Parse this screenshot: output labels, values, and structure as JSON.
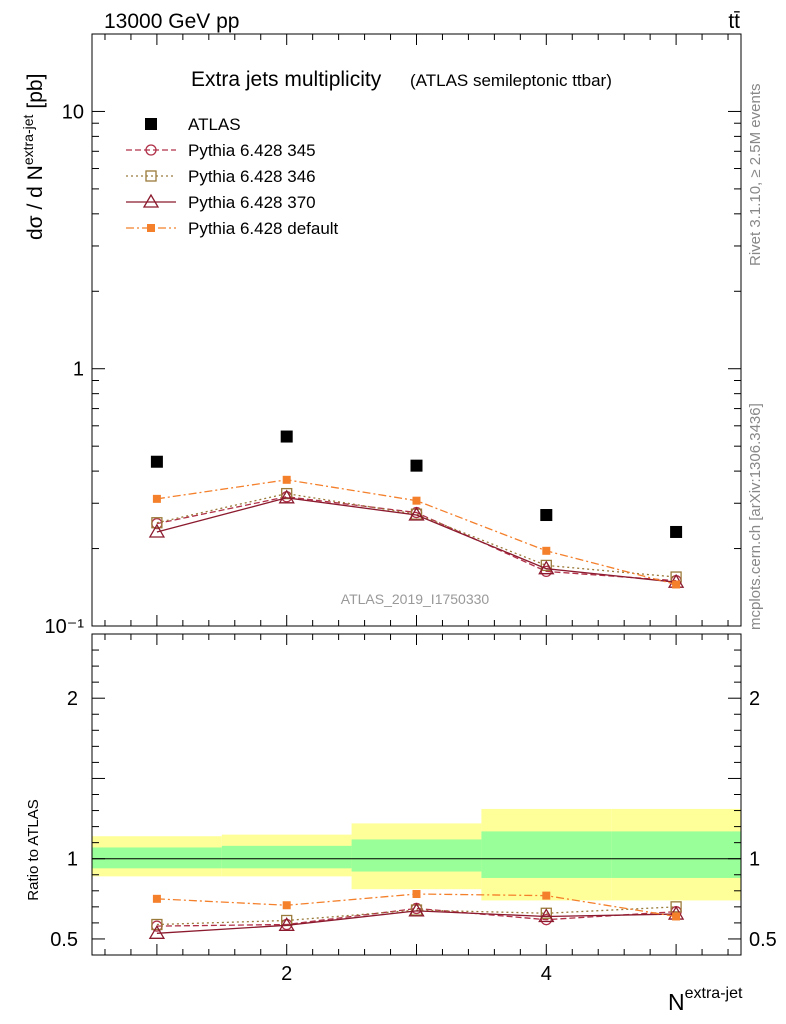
{
  "header": {
    "energy_label": "13000 GeV pp",
    "process_label": "tt̄"
  },
  "side_labels": {
    "rivet": "Rivet 3.1.10, ≥ 2.5M events",
    "mcplots": "mcplots.cern.ch [arXiv:1306.3436]"
  },
  "chart_data": {
    "type": "scatter",
    "title": "Extra jets multiplicity",
    "subtitle": "(ATLAS semileptonic ttbar)",
    "analysis_id": "ATLAS_2019_I1750330",
    "xlabel": "N",
    "xlabel_sup": "extra-jet",
    "ylabel": "dσ / d N",
    "ylabel_sup": "extra-jet",
    "ylabel_unit": "[pb]",
    "xlim": [
      0.5,
      5.5
    ],
    "ylim": [
      0.1,
      20
    ],
    "yscale": "log",
    "x": [
      1,
      2,
      3,
      4,
      5
    ],
    "x_ticks": [
      "2",
      "4"
    ],
    "y_tick_labels": {
      "0.1": "10⁻¹",
      "1": "1",
      "10": "10"
    },
    "legend_position": "top-left",
    "series": [
      {
        "name": "ATLAS",
        "color": "#000000",
        "marker": "filled-square",
        "line": "none",
        "values": [
          0.435,
          0.545,
          0.42,
          0.27,
          0.232
        ]
      },
      {
        "name": "Pythia 6.428 345",
        "color": "#b03048",
        "marker": "open-circle",
        "line": "dashed",
        "values": [
          0.25,
          0.318,
          0.276,
          0.163,
          0.15
        ]
      },
      {
        "name": "Pythia 6.428 346",
        "color": "#9a7a3a",
        "marker": "open-square",
        "line": "dotted",
        "values": [
          0.252,
          0.327,
          0.272,
          0.172,
          0.155
        ]
      },
      {
        "name": "Pythia 6.428 370",
        "color": "#8b1a2e",
        "marker": "open-triangle",
        "line": "solid",
        "values": [
          0.232,
          0.315,
          0.27,
          0.167,
          0.148
        ]
      },
      {
        "name": "Pythia 6.428 default",
        "color": "#f4802c",
        "marker": "filled-square-small",
        "line": "dashdot",
        "values": [
          0.312,
          0.37,
          0.307,
          0.196,
          0.145
        ]
      }
    ],
    "ratio": {
      "ylabel": "Ratio to ATLAS",
      "ylim": [
        0.4,
        2.4
      ],
      "y_ticks": [
        "0.5",
        "1",
        "2"
      ],
      "bins": [
        [
          0.5,
          1.5
        ],
        [
          1.5,
          2.5
        ],
        [
          2.5,
          3.5
        ],
        [
          3.5,
          4.5
        ],
        [
          4.5,
          5.5
        ]
      ],
      "green_band": [
        [
          0.94,
          1.07
        ],
        [
          0.94,
          1.08
        ],
        [
          0.92,
          1.12
        ],
        [
          0.88,
          1.17
        ],
        [
          0.88,
          1.17
        ]
      ],
      "yellow_band": [
        [
          0.89,
          1.14
        ],
        [
          0.89,
          1.15
        ],
        [
          0.81,
          1.22
        ],
        [
          0.74,
          1.31
        ],
        [
          0.74,
          1.31
        ]
      ],
      "series_values": {
        "Pythia 6.428 345": [
          0.58,
          0.59,
          0.69,
          0.62,
          0.67
        ],
        "Pythia 6.428 346": [
          0.59,
          0.615,
          0.68,
          0.66,
          0.7
        ],
        "Pythia 6.428 370": [
          0.535,
          0.585,
          0.675,
          0.64,
          0.655
        ],
        "Pythia 6.428 default": [
          0.75,
          0.71,
          0.78,
          0.77,
          0.64
        ]
      }
    }
  }
}
